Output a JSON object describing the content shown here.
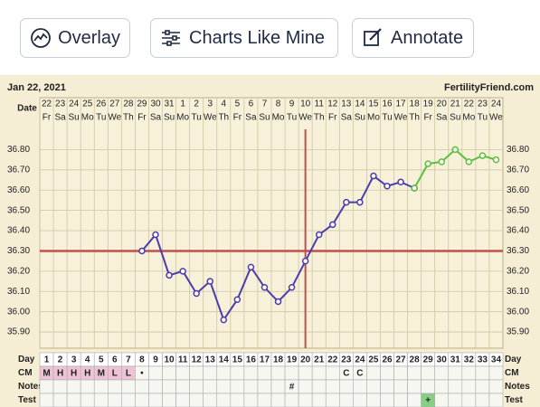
{
  "buttons": [
    "Overlay",
    "Charts Like Mine",
    "Annotate"
  ],
  "chart_data": {
    "type": "line",
    "date": "Jan 22, 2021",
    "site": "FertilityFriend.com",
    "row_labels": {
      "date": "Date",
      "day": "Day",
      "cm": "CM",
      "notes": "Notes",
      "test": "Test"
    },
    "x": [
      1,
      2,
      3,
      4,
      5,
      6,
      7,
      8,
      9,
      10,
      11,
      12,
      13,
      14,
      15,
      16,
      17,
      18,
      19,
      20,
      21,
      22,
      23,
      24,
      25,
      26,
      27,
      28,
      29,
      30,
      31,
      32,
      33,
      34
    ],
    "xlim": [
      0.5,
      34.5
    ],
    "dates": [
      22,
      23,
      24,
      25,
      26,
      27,
      28,
      29,
      30,
      31,
      1,
      2,
      3,
      4,
      5,
      6,
      7,
      8,
      9,
      10,
      11,
      12,
      13,
      14,
      15,
      16,
      17,
      18,
      19,
      20,
      21,
      22,
      23,
      24
    ],
    "weekdays": [
      "Fr",
      "Sa",
      "Su",
      "Mo",
      "Tu",
      "We",
      "Th",
      "Fr",
      "Sa",
      "Su",
      "Mo",
      "Tu",
      "We",
      "Th",
      "Fr",
      "Sa",
      "Su",
      "Mo",
      "Tu",
      "We",
      "Th",
      "Fr",
      "Sa",
      "Su",
      "Mo",
      "Tu",
      "We",
      "Th",
      "Fr",
      "Sa",
      "Su",
      "Mo",
      "Tu",
      "We"
    ],
    "series": [
      {
        "color": "#4b3cae",
        "values": [
          null,
          null,
          null,
          null,
          null,
          null,
          null,
          36.3,
          36.38,
          36.18,
          36.2,
          36.09,
          36.15,
          35.96,
          36.06,
          36.22,
          36.12,
          36.05,
          36.12,
          36.25,
          36.38,
          36.43,
          36.54,
          36.54,
          36.67,
          36.62,
          36.64,
          36.61,
          null,
          null,
          null,
          null,
          null,
          null
        ]
      },
      {
        "color": "#5cbf3a",
        "values": [
          null,
          null,
          null,
          null,
          null,
          null,
          null,
          null,
          null,
          null,
          null,
          null,
          null,
          null,
          null,
          null,
          null,
          null,
          null,
          null,
          null,
          null,
          null,
          null,
          null,
          null,
          null,
          36.61,
          36.73,
          36.74,
          36.8,
          36.74,
          36.77,
          36.75
        ]
      }
    ],
    "ylim": [
      35.82,
      36.9
    ],
    "yticks": [
      {
        "value": 35.9,
        "label": "35.90"
      },
      {
        "value": 36.0,
        "label": "36.00"
      },
      {
        "value": 36.1,
        "label": "36.10"
      },
      {
        "value": 36.2,
        "label": "36.20"
      },
      {
        "value": 36.3,
        "label": "36.30"
      },
      {
        "value": 36.4,
        "label": "36.40"
      },
      {
        "value": 36.5,
        "label": "36.50"
      },
      {
        "value": 36.6,
        "label": "36.60"
      },
      {
        "value": 36.7,
        "label": "36.70"
      },
      {
        "value": 36.8,
        "label": "36.80"
      }
    ],
    "grid": true,
    "coverline": 36.3,
    "ovulation_day": 20,
    "line_color": "#c0504d",
    "cm": [
      "M",
      "H",
      "H",
      "H",
      "M",
      "L",
      "L",
      "•",
      null,
      null,
      null,
      null,
      null,
      null,
      null,
      null,
      null,
      null,
      null,
      null,
      null,
      null,
      "C",
      "C",
      null,
      null,
      null,
      null,
      null,
      null,
      null,
      null,
      null,
      null
    ],
    "cm_fill": "#efc3d5",
    "cm_fill_days": [
      1,
      2,
      3,
      4,
      5,
      6,
      7
    ],
    "notes": [
      null,
      null,
      null,
      null,
      null,
      null,
      null,
      null,
      null,
      null,
      null,
      null,
      null,
      null,
      null,
      null,
      null,
      null,
      "#",
      null,
      null,
      null,
      null,
      null,
      null,
      null,
      null,
      null,
      null,
      null,
      null,
      null,
      null,
      null
    ],
    "test": [
      null,
      null,
      null,
      null,
      null,
      null,
      null,
      null,
      null,
      null,
      null,
      null,
      null,
      null,
      null,
      null,
      null,
      null,
      null,
      null,
      null,
      null,
      null,
      null,
      null,
      null,
      null,
      null,
      "+",
      null,
      null,
      null,
      null,
      null
    ],
    "test_fill": "#86cf86"
  }
}
